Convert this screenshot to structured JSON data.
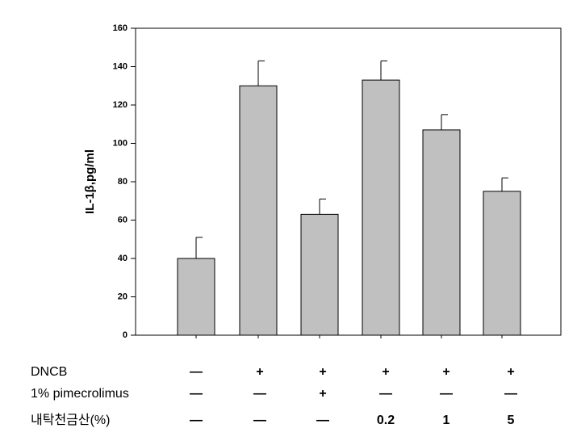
{
  "chart_data": {
    "type": "bar",
    "y_label": "IL-1β,pg/ml",
    "categories": [
      null,
      null,
      null,
      null,
      null,
      null
    ],
    "values": [
      40,
      130,
      63,
      133,
      107,
      75
    ],
    "errors": [
      11,
      13,
      8,
      10,
      8,
      7
    ],
    "color": "#c0c0c0",
    "ylim": [
      0,
      160
    ],
    "yticks": [
      0,
      20,
      40,
      60,
      80,
      100,
      120,
      140,
      160
    ],
    "grid": false,
    "treatment_table": {
      "rows": [
        {
          "label": "DNCB",
          "cells": [
            "—",
            "+",
            "+",
            "+",
            "+",
            "+"
          ]
        },
        {
          "label": "1% pimecrolimus",
          "cells": [
            "—",
            "—",
            "+",
            "—",
            "—",
            "—"
          ]
        },
        {
          "label": "내탁천금산(%)",
          "cells": [
            "—",
            "—",
            "—",
            "0.2",
            "1",
            "5"
          ]
        }
      ]
    }
  }
}
